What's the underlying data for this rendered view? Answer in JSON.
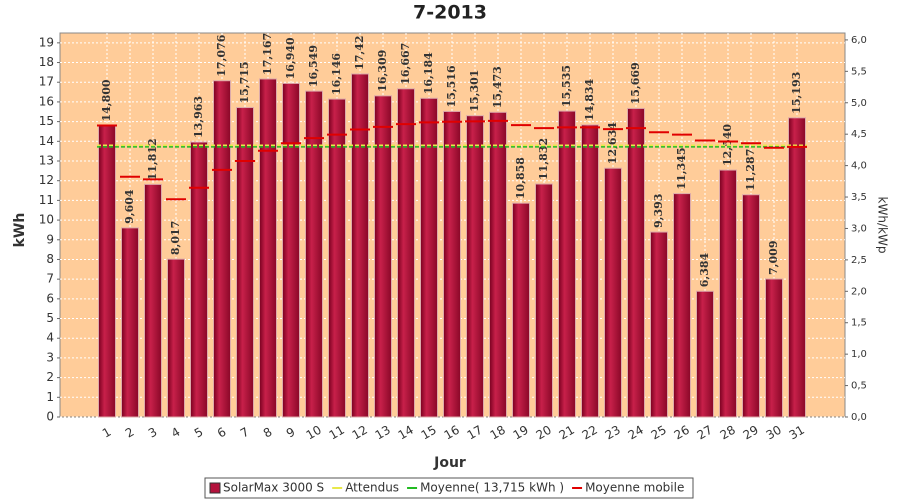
{
  "chart_data": {
    "type": "bar",
    "title": "7-2013",
    "x_label": "Jour",
    "y_label": "kWh",
    "y2_label": "kWh/kWp",
    "categories": [
      "1",
      "2",
      "3",
      "4",
      "5",
      "6",
      "7",
      "8",
      "9",
      "10",
      "11",
      "12",
      "13",
      "14",
      "15",
      "16",
      "17",
      "18",
      "19",
      "20",
      "21",
      "22",
      "23",
      "24",
      "25",
      "26",
      "27",
      "28",
      "29",
      "30",
      "31"
    ],
    "series": [
      {
        "name": "SolarMax 3000 S",
        "color": "#b3123c",
        "values": [
          14.8,
          9.604,
          11.812,
          8.017,
          13.963,
          17.076,
          15.715,
          17.167,
          16.94,
          16.549,
          16.146,
          17.42,
          16.309,
          16.667,
          16.184,
          15.516,
          15.301,
          15.473,
          10.858,
          11.832,
          15.535,
          14.834,
          12.634,
          15.669,
          9.393,
          11.345,
          6.384,
          12.54,
          11.287,
          7.009,
          15.193
        ],
        "value_labels": [
          "14,800",
          "9,604",
          "11,812",
          "8,017",
          "13,963",
          "17,076",
          "15,715",
          "17,167",
          "16,940",
          "16,549",
          "16,146",
          "17,42",
          "16,309",
          "16,667",
          "16,184",
          "15,516",
          "15,301",
          "15,473",
          "10,858",
          "11,832",
          "15,535",
          "14,834",
          "12,634",
          "15,669",
          "9,393",
          "11,345",
          "6,384",
          "12,540",
          "11,287",
          "7,009",
          "15,193"
        ]
      },
      {
        "name": "Moyenne mobile",
        "color": "#e00000",
        "values": [
          14.8,
          12.2,
          12.07,
          11.06,
          11.64,
          12.55,
          13.0,
          13.52,
          13.9,
          14.16,
          14.34,
          14.6,
          14.73,
          14.87,
          14.96,
          14.99,
          15.01,
          15.04,
          14.82,
          14.67,
          14.71,
          14.71,
          14.62,
          14.67,
          14.46,
          14.34,
          14.04,
          13.99,
          13.9,
          13.67,
          13.72
        ]
      }
    ],
    "lines": [
      {
        "name": "Attendus",
        "color": "#e8e84a",
        "value": 13.8
      },
      {
        "name": "Moyenne( 13,715 kWh )",
        "color": "#22bb22",
        "value": 13.715
      }
    ],
    "ylim": [
      0,
      19.5
    ],
    "yticks": [
      0,
      1,
      2,
      3,
      4,
      5,
      6,
      7,
      8,
      9,
      10,
      11,
      12,
      13,
      14,
      15,
      16,
      17,
      18,
      19
    ],
    "y2lim": [
      0,
      6.11
    ],
    "y2ticks": [
      {
        "value": 0,
        "label": "0,0"
      },
      {
        "value": 0.5,
        "label": "0,5"
      },
      {
        "value": 1,
        "label": "1,0"
      },
      {
        "value": 1.5,
        "label": "1,5"
      },
      {
        "value": 2,
        "label": "2,0"
      },
      {
        "value": 2.5,
        "label": "2,5"
      },
      {
        "value": 3,
        "label": "3,0"
      },
      {
        "value": 3.5,
        "label": "3,5"
      },
      {
        "value": 4,
        "label": "4,0"
      },
      {
        "value": 4.5,
        "label": "4,5"
      },
      {
        "value": 5,
        "label": "5,0"
      },
      {
        "value": 5.5,
        "label": "5,5"
      },
      {
        "value": 6,
        "label": "6,0"
      }
    ],
    "grid": true
  }
}
